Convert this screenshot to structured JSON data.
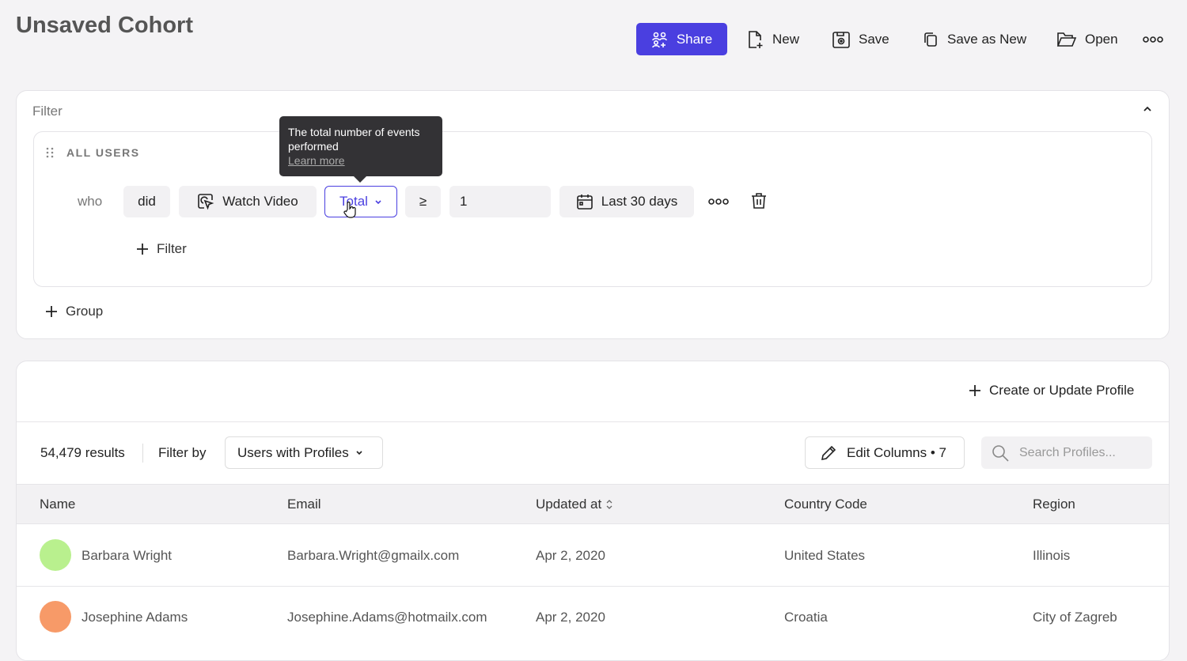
{
  "header": {
    "title": "Unsaved Cohort",
    "share": "Share",
    "new": "New",
    "save": "Save",
    "save_as_new": "Save as New",
    "open": "Open"
  },
  "filter": {
    "label": "Filter",
    "group_label": "ALL USERS",
    "who": "who",
    "did": "did",
    "event": "Watch Video",
    "aggregation": "Total",
    "operator": "≥",
    "value": "1",
    "date_range": "Last 30 days",
    "add_filter": "Filter",
    "add_group": "Group",
    "tooltip": {
      "text": "The total number of events performed",
      "link": "Learn more"
    }
  },
  "accent": "#4a3fe0",
  "results": {
    "create_profile": "Create or Update Profile",
    "count": "54,479 results",
    "filter_by": "Filter by",
    "filter_value": "Users with Profiles",
    "edit_columns": "Edit Columns • 7",
    "search_placeholder": "Search Profiles...",
    "columns": [
      "Name",
      "Email",
      "Updated at",
      "Country Code",
      "Region"
    ],
    "rows": [
      {
        "name": "Barbara Wright",
        "email": "Barbara.Wright@gmailx.com",
        "updated": "Apr 2, 2020",
        "country": "United States",
        "region": "Illinois",
        "avatar_color": "#b9f08e"
      },
      {
        "name": "Josephine Adams",
        "email": "Josephine.Adams@hotmailx.com",
        "updated": "Apr 2, 2020",
        "country": "Croatia",
        "region": "City of Zagreb",
        "avatar_color": "#f79a68"
      }
    ]
  }
}
